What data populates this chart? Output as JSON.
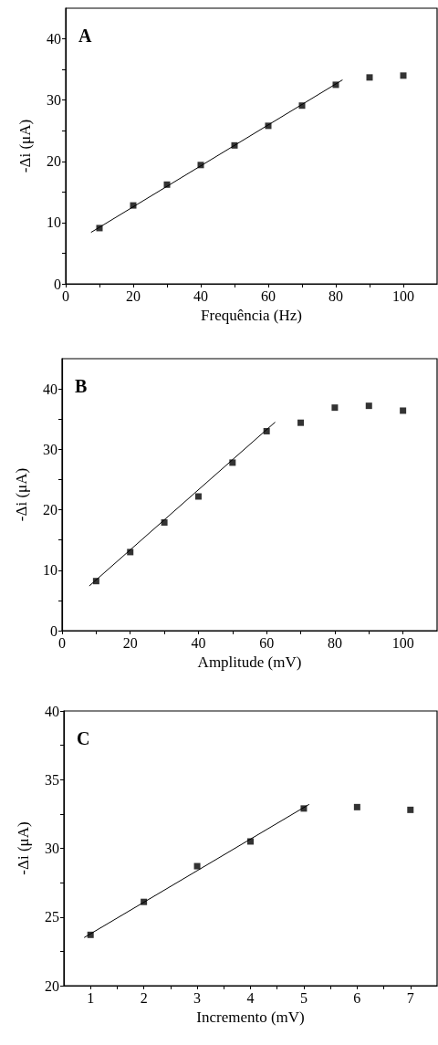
{
  "chart_data": [
    {
      "type": "scatter",
      "xlabel": "Frequência (Hz)",
      "ylabel": "-Δi (μA)",
      "annotations": [
        "A"
      ],
      "marker": "square",
      "xlim": [
        0,
        110
      ],
      "xticks": [
        0,
        {
          "value": 10,
          "label": null
        },
        20,
        {
          "value": 30,
          "label": null
        },
        40,
        {
          "value": 50,
          "label": null
        },
        60,
        {
          "value": 70,
          "label": null
        },
        80,
        {
          "value": 90,
          "label": null
        },
        100
      ],
      "ylim": [
        0,
        45
      ],
      "yticks": [
        0,
        {
          "value": 5,
          "label": null
        },
        10,
        {
          "value": 15,
          "label": null
        },
        20,
        {
          "value": 25,
          "label": null
        },
        30,
        {
          "value": 35,
          "label": null
        },
        40
      ],
      "series": [
        {
          "color": "#000000",
          "x": [
            10,
            20,
            30,
            40,
            50,
            60,
            70,
            80,
            90,
            100
          ],
          "values": [
            9.1,
            12.8,
            16.2,
            19.4,
            22.6,
            25.8,
            29.1,
            32.5,
            33.7,
            34.0
          ]
        },
        {
          "type": "line",
          "color": "#000000",
          "marker": "none",
          "line_style": "solid",
          "x": [
            7.5,
            82
          ],
          "values": [
            8.4,
            33.3
          ]
        }
      ]
    },
    {
      "type": "scatter",
      "xlabel": "Amplitude (mV)",
      "ylabel": "-Δi (μA)",
      "annotations": [
        "B"
      ],
      "marker": "square",
      "xlim": [
        0,
        110
      ],
      "xticks": [
        0,
        {
          "value": 10,
          "label": null
        },
        20,
        {
          "value": 30,
          "label": null
        },
        40,
        {
          "value": 50,
          "label": null
        },
        60,
        {
          "value": 70,
          "label": null
        },
        80,
        {
          "value": 90,
          "label": null
        },
        100
      ],
      "ylim": [
        0,
        45
      ],
      "yticks": [
        0,
        {
          "value": 5,
          "label": null
        },
        10,
        {
          "value": 15,
          "label": null
        },
        20,
        {
          "value": 25,
          "label": null
        },
        30,
        {
          "value": 35,
          "label": null
        },
        40
      ],
      "series": [
        {
          "color": "#000000",
          "x": [
            10,
            20,
            30,
            40,
            50,
            60,
            70,
            80,
            90,
            100
          ],
          "values": [
            8.2,
            13.0,
            17.9,
            22.2,
            27.8,
            33.0,
            34.4,
            36.9,
            37.2,
            36.4
          ]
        },
        {
          "type": "line",
          "color": "#000000",
          "marker": "none",
          "line_style": "solid",
          "x": [
            8,
            62.5
          ],
          "values": [
            7.4,
            34.5
          ]
        }
      ]
    },
    {
      "type": "scatter",
      "xlabel": "Incremento (mV)",
      "ylabel": "-Δi (μA)",
      "annotations": [
        "C"
      ],
      "marker": "square",
      "xlim": [
        0.5,
        7.5
      ],
      "xticks": [
        1,
        {
          "value": 1.5,
          "label": null
        },
        2,
        {
          "value": 2.5,
          "label": null
        },
        3,
        {
          "value": 3.5,
          "label": null
        },
        4,
        {
          "value": 4.5,
          "label": null
        },
        5,
        {
          "value": 5.5,
          "label": null
        },
        6,
        {
          "value": 6.5,
          "label": null
        },
        7
      ],
      "ylim": [
        20,
        40
      ],
      "yticks": [
        20,
        {
          "value": 22.5,
          "label": null
        },
        25,
        {
          "value": 27.5,
          "label": null
        },
        30,
        {
          "value": 32.5,
          "label": null
        },
        35,
        {
          "value": 37.5,
          "label": null
        },
        40
      ],
      "series": [
        {
          "color": "#000000",
          "x": [
            1,
            2,
            3,
            4,
            5,
            6,
            7
          ],
          "values": [
            23.7,
            26.1,
            28.7,
            30.5,
            32.9,
            33.0,
            32.8
          ]
        },
        {
          "type": "line",
          "color": "#000000",
          "marker": "none",
          "line_style": "solid",
          "x": [
            0.88,
            5.1
          ],
          "values": [
            23.5,
            33.2
          ]
        }
      ]
    }
  ]
}
